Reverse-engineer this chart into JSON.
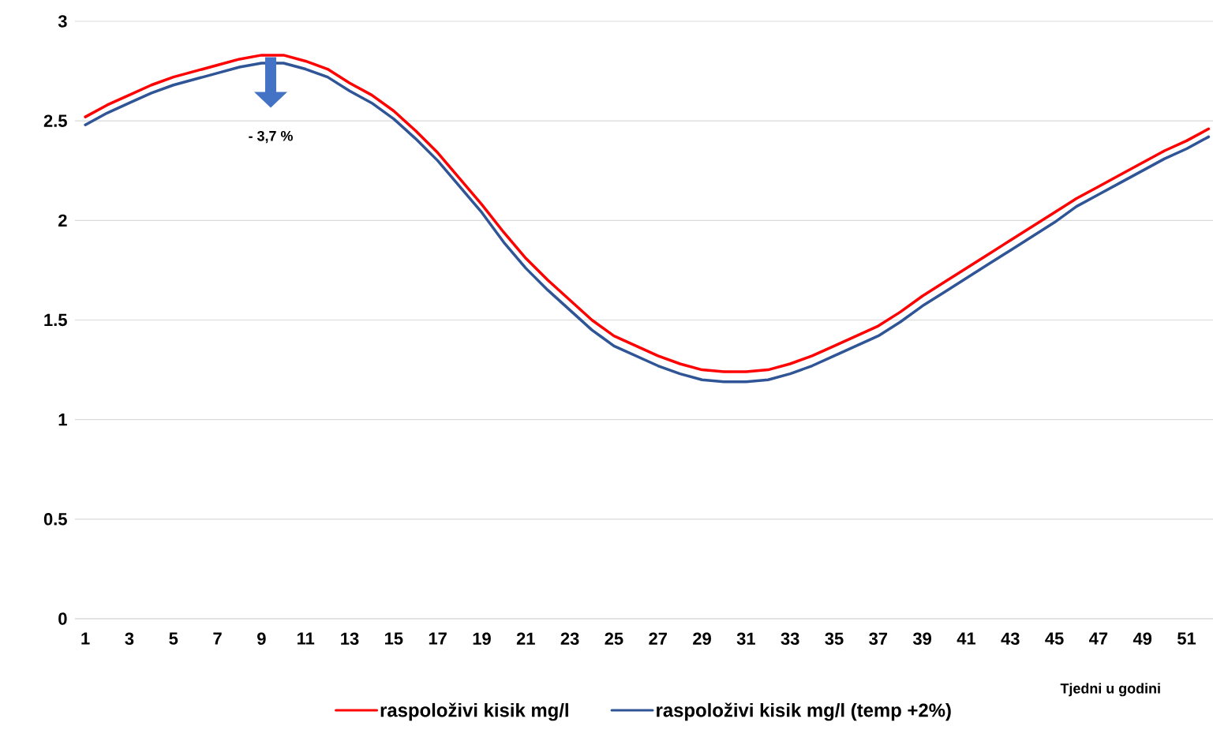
{
  "chart_data": {
    "type": "line",
    "xlabel": "Tjedni u godini",
    "categories": [
      "1",
      null,
      "3",
      null,
      "5",
      null,
      "7",
      null,
      "9",
      null,
      "11",
      null,
      "13",
      null,
      "15",
      null,
      "17",
      null,
      "19",
      null,
      "21",
      null,
      "23",
      null,
      "25",
      null,
      "27",
      null,
      "29",
      null,
      "31",
      null,
      "33",
      null,
      "35",
      null,
      "37",
      null,
      "39",
      null,
      "41",
      null,
      "43",
      null,
      "45",
      null,
      "47",
      null,
      "49",
      null,
      "51",
      null
    ],
    "series": [
      {
        "name": "raspoloživi kisik mg/l",
        "color": "#ff0000",
        "values": [
          2.52,
          2.58,
          2.63,
          2.68,
          2.72,
          2.75,
          2.78,
          2.81,
          2.83,
          2.83,
          2.8,
          2.76,
          2.69,
          2.63,
          2.55,
          2.45,
          2.34,
          2.21,
          2.08,
          1.94,
          1.81,
          1.7,
          1.6,
          1.5,
          1.42,
          1.37,
          1.32,
          1.28,
          1.25,
          1.24,
          1.24,
          1.25,
          1.28,
          1.32,
          1.37,
          1.42,
          1.47,
          1.54,
          1.62,
          1.69,
          1.76,
          1.83,
          1.9,
          1.97,
          2.04,
          2.11,
          2.17,
          2.23,
          2.29,
          2.35,
          2.4,
          2.46
        ]
      },
      {
        "name": "raspoloživi kisik mg/l (temp +2%)",
        "color": "#2f5597",
        "values": [
          2.48,
          2.54,
          2.59,
          2.64,
          2.68,
          2.71,
          2.74,
          2.77,
          2.79,
          2.79,
          2.76,
          2.72,
          2.65,
          2.59,
          2.51,
          2.41,
          2.3,
          2.17,
          2.04,
          1.89,
          1.76,
          1.65,
          1.55,
          1.45,
          1.37,
          1.32,
          1.27,
          1.23,
          1.2,
          1.19,
          1.19,
          1.2,
          1.23,
          1.27,
          1.32,
          1.37,
          1.42,
          1.49,
          1.57,
          1.64,
          1.71,
          1.78,
          1.85,
          1.92,
          1.99,
          2.07,
          2.13,
          2.19,
          2.25,
          2.31,
          2.36,
          2.42
        ]
      }
    ],
    "ylim": [
      0,
      3
    ],
    "yticks": [
      0,
      0.5,
      1,
      1.5,
      2,
      2.5,
      3
    ],
    "annotations": [
      "- 3,7 %"
    ],
    "grid": "y",
    "legend": "bottom",
    "marker": "none",
    "line_style": "solid"
  }
}
